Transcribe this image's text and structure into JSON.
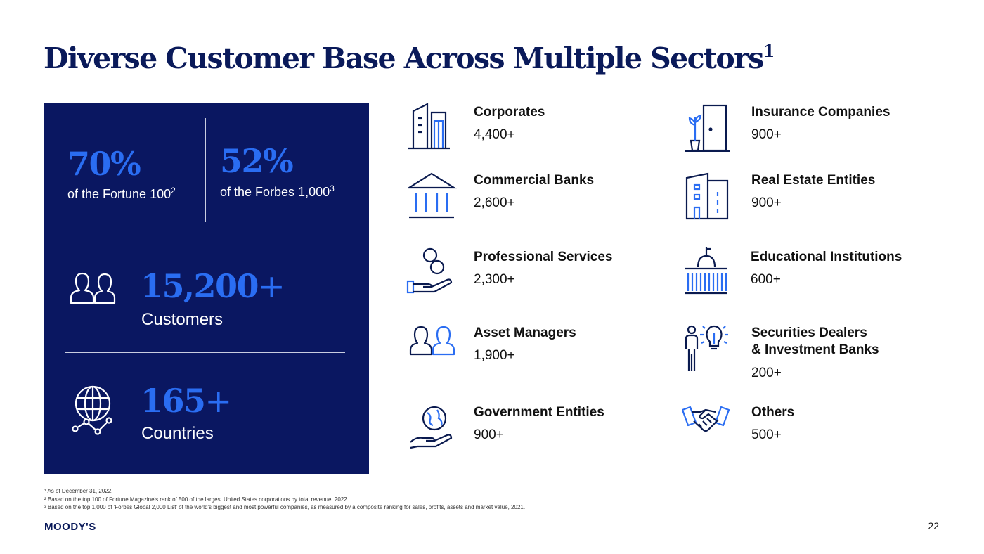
{
  "title": "Diverse Customer Base Across Multiple Sectors",
  "title_sup": "1",
  "colors": {
    "navy": "#0a1761",
    "accent_blue": "#2a6df2",
    "title": "#0a1a5a"
  },
  "panel": {
    "stat1": {
      "value": "70%",
      "label": "of the Fortune 100",
      "sup": "2"
    },
    "stat2": {
      "value": "52%",
      "label": "of the Forbes 1,000",
      "sup": "3"
    },
    "customers": {
      "value": "15,200",
      "plus": "+",
      "label": "Customers",
      "icon": "people-icon"
    },
    "countries": {
      "value": "165",
      "plus": "+",
      "label": "Countries",
      "icon": "globe-icon"
    }
  },
  "sectors": [
    {
      "name": "Corporates",
      "count": "4,400+",
      "icon": "buildings-icon"
    },
    {
      "name": "Commercial Banks",
      "count": "2,600+",
      "icon": "bank-icon"
    },
    {
      "name": "Professional Services",
      "count": "2,300+",
      "icon": "hand-coins-icon"
    },
    {
      "name": "Asset Managers",
      "count": "1,900+",
      "icon": "people-icon"
    },
    {
      "name": "Government Entities",
      "count": "900+",
      "icon": "hand-globe-icon"
    },
    {
      "name": "Insurance Companies",
      "count": "900+",
      "icon": "door-plant-icon"
    },
    {
      "name": "Real Estate Entities",
      "count": "900+",
      "icon": "office-building-icon"
    },
    {
      "name_lines": [
        "Educational Institutions"
      ],
      "name": "Educational Institutions",
      "count": "600+",
      "icon": "capitol-icon"
    },
    {
      "name_line1": "Securities Dealers",
      "name_line2": "& Investment Banks",
      "count": "200+",
      "icon": "person-idea-icon"
    },
    {
      "name": "Others",
      "count": "500+",
      "icon": "handshake-icon"
    }
  ],
  "footnotes": {
    "f1": "¹ As of December 31, 2022.",
    "f2": "² Based on the top 100 of Fortune Magazine's rank of 500 of the largest United States corporations by total revenue, 2022.",
    "f3": "³ Based on the top 1,000 of 'Forbes Global 2,000 List' of the world's biggest and most powerful companies, as measured by a composite ranking for sales, profits, assets and market value, 2021."
  },
  "logo": "MOODY'S",
  "page_number": "22"
}
